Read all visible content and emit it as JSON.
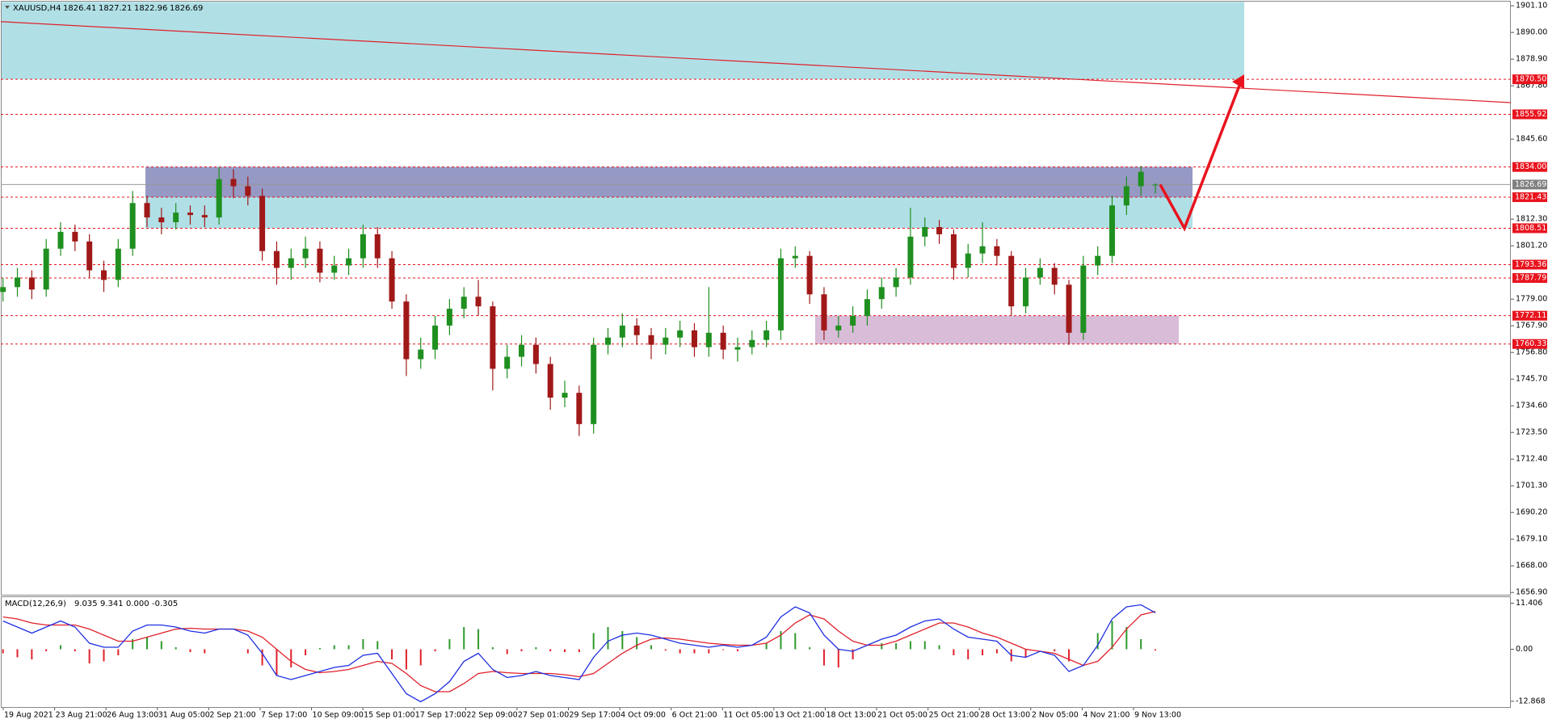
{
  "header": {
    "symbol": "XAUUSD,H4",
    "ohlc": [
      1826.41,
      1827.21,
      1822.96,
      1826.69
    ]
  },
  "chart_data": [
    {
      "type": "candlestick",
      "time_labels": [
        "19 Aug 2021",
        "23 Aug 21:00",
        "26 Aug 13:00",
        "31 Aug 05:00",
        "2 Sep 21:00",
        "7 Sep 17:00",
        "10 Sep 09:00",
        "15 Sep 01:00",
        "17 Sep 17:00",
        "22 Sep 09:00",
        "27 Sep 01:00",
        "29 Sep 17:00",
        "4 Oct 09:00",
        "6 Oct 21:00",
        "11 Oct 05:00",
        "13 Oct 21:00",
        "18 Oct 13:00",
        "21 Oct 05:00",
        "25 Oct 21:00",
        "28 Oct 13:00",
        "2 Nov 05:00",
        "4 Nov 21:00",
        "9 Nov 13:00"
      ],
      "open": [
        1782,
        1784,
        1788,
        1783,
        1800,
        1807,
        1803,
        1791,
        1787,
        1800,
        1819,
        1813,
        1811,
        1815,
        1814,
        1813,
        1829,
        1826,
        1822,
        1799,
        1792,
        1796,
        1800,
        1790,
        1793,
        1796,
        1806,
        1796,
        1778,
        1754,
        1758,
        1768,
        1775,
        1780,
        1776,
        1750,
        1755,
        1760,
        1752,
        1738,
        1740,
        1727,
        1760,
        1763,
        1768,
        1764,
        1760,
        1763,
        1766,
        1759,
        1765,
        1758,
        1759,
        1762,
        1766,
        1796,
        1797,
        1781,
        1766,
        1768,
        1772,
        1779,
        1784,
        1788,
        1805,
        1809,
        1806,
        1792,
        1798,
        1801,
        1797,
        1776,
        1788,
        1792,
        1785,
        1765,
        1793,
        1797,
        1818,
        1826,
        1826.41
      ],
      "high": [
        1788,
        1792,
        1791,
        1804,
        1811,
        1810,
        1806,
        1795,
        1804,
        1824,
        1822,
        1817,
        1819,
        1818,
        1818,
        1834,
        1833,
        1830,
        1825,
        1803,
        1800,
        1805,
        1803,
        1797,
        1800,
        1810,
        1809,
        1799,
        1781,
        1763,
        1772,
        1779,
        1784,
        1787,
        1778,
        1760,
        1764,
        1763,
        1755,
        1745,
        1743,
        1763,
        1767,
        1773,
        1771,
        1767,
        1767,
        1770,
        1769,
        1784,
        1768,
        1763,
        1766,
        1770,
        1800,
        1801,
        1799,
        1784,
        1772,
        1776,
        1783,
        1788,
        1792,
        1817,
        1813,
        1812,
        1808,
        1802,
        1811,
        1804,
        1799,
        1792,
        1796,
        1794,
        1787,
        1797,
        1801,
        1822,
        1830,
        1834.5,
        1827.21
      ],
      "low": [
        1778,
        1780,
        1779,
        1780,
        1797,
        1799,
        1788,
        1782,
        1784,
        1797,
        1809,
        1806,
        1808,
        1810,
        1809,
        1810,
        1821,
        1818,
        1795,
        1785,
        1787,
        1792,
        1786,
        1787,
        1789,
        1792,
        1792,
        1775,
        1747,
        1750,
        1754,
        1764,
        1771,
        1772,
        1741,
        1746,
        1751,
        1748,
        1733,
        1734,
        1722,
        1723,
        1756,
        1759,
        1760,
        1754,
        1756,
        1759,
        1755,
        1755,
        1754,
        1753,
        1756,
        1759,
        1762,
        1792,
        1777,
        1762,
        1763,
        1765,
        1768,
        1775,
        1780,
        1785,
        1801,
        1802,
        1787,
        1788,
        1794,
        1793,
        1772,
        1773,
        1785,
        1781,
        1760,
        1762,
        1789,
        1794,
        1814,
        1822,
        1822.96
      ],
      "close": [
        1784,
        1788,
        1783,
        1800,
        1807,
        1803,
        1791,
        1787,
        1800,
        1819,
        1813,
        1811,
        1815,
        1814,
        1813,
        1829,
        1826,
        1822,
        1799,
        1792,
        1796,
        1800,
        1790,
        1793,
        1796,
        1806,
        1796,
        1778,
        1754,
        1758,
        1768,
        1775,
        1780,
        1776,
        1750,
        1755,
        1760,
        1752,
        1738,
        1740,
        1727,
        1760,
        1763,
        1768,
        1764,
        1760,
        1763,
        1766,
        1759,
        1765,
        1758,
        1759,
        1762,
        1766,
        1796,
        1797,
        1781,
        1766,
        1768,
        1772,
        1779,
        1784,
        1788,
        1805,
        1809,
        1806,
        1792,
        1798,
        1801,
        1797,
        1776,
        1788,
        1792,
        1785,
        1765,
        1793,
        1797,
        1818,
        1826,
        1832,
        1826.69
      ],
      "up_color": "#1f8f1f",
      "down_color": "#a01818",
      "ylim": [
        1656.1,
        1902.7
      ],
      "yticks": [
        {
          "value": 1901.1,
          "label": "1901.10"
        },
        {
          "value": 1890,
          "label": "1890.00"
        },
        {
          "value": 1878.9,
          "label": "1878.90"
        },
        {
          "value": 1867.8,
          "label": "1867.80"
        },
        {
          "value": 1845.6,
          "label": "1845.60"
        },
        {
          "value": 1812.3,
          "label": "1812.30"
        },
        {
          "value": 1801.2,
          "label": "1801.20"
        },
        {
          "value": 1779,
          "label": "1779.00"
        },
        {
          "value": 1767.9,
          "label": "1767.90"
        },
        {
          "value": 1756.8,
          "label": "1756.80"
        },
        {
          "value": 1745.7,
          "label": "1745.70"
        },
        {
          "value": 1734.6,
          "label": "1734.60"
        },
        {
          "value": 1723.5,
          "label": "1723.50"
        },
        {
          "value": 1712.4,
          "label": "1712.40"
        },
        {
          "value": 1701.3,
          "label": "1701.30"
        },
        {
          "value": 1690.2,
          "label": "1690.20"
        },
        {
          "value": 1679.1,
          "label": "1679.10"
        },
        {
          "value": 1668,
          "label": "1668.00"
        },
        {
          "value": 1656.9,
          "label": "1656.90"
        }
      ],
      "levels": [
        {
          "value": 1870.5,
          "label": "1870.50"
        },
        {
          "value": 1855.92,
          "label": "1855.92"
        },
        {
          "value": 1834,
          "label": "1834.00"
        },
        {
          "value": 1821.43,
          "label": "1821.43"
        },
        {
          "value": 1808.51,
          "label": "1808.51"
        },
        {
          "value": 1793.36,
          "label": "1793.36"
        },
        {
          "value": 1787.79,
          "label": "1787.79"
        },
        {
          "value": 1772.11,
          "label": "1772.11"
        },
        {
          "value": 1760.33,
          "label": "1760.33"
        }
      ],
      "level_color": "#e8141e",
      "current_price": {
        "value": 1826.69,
        "label": "1826.69"
      },
      "zones": [
        {
          "low": 1870.5,
          "high": 1902.7,
          "color": "#b0e0e6"
        },
        {
          "low": 1808.51,
          "high": 1834,
          "color": "#b0e0e6"
        },
        {
          "low": 1821.43,
          "high": 1834,
          "color": "#9699c4"
        },
        {
          "low": 1760.33,
          "high": 1772.11,
          "color": "#d8bcd8"
        }
      ],
      "trend_line": {
        "start": 1894.5,
        "end": 1860.8,
        "color": "#e0202a"
      },
      "arrow": {
        "points": [
          1826.7,
          1808.5,
          1870.5
        ],
        "color": "#e8141e"
      }
    },
    {
      "type": "macd",
      "title": "MACD(12,26,9)",
      "header_values": [
        9.035,
        9.341,
        {
          "value": 0,
          "label": "0.000"
        },
        -0.305
      ],
      "macd": [
        7,
        5.5,
        4,
        5.5,
        7,
        5.5,
        1.5,
        0.5,
        0.5,
        4.5,
        6,
        6,
        5.5,
        4.5,
        4,
        5,
        5,
        3.5,
        -1,
        -6.5,
        -7.5,
        -6.5,
        -5.5,
        -4.5,
        -4,
        -1.5,
        -1,
        -6,
        -11,
        -13,
        -11,
        -8,
        -3,
        -1,
        -5,
        -7,
        -6.5,
        -5.5,
        -6.5,
        -7,
        -7.5,
        -2,
        2,
        3.5,
        4,
        3.5,
        2.5,
        1.5,
        1,
        0.5,
        1,
        0.5,
        1,
        3,
        8,
        10.5,
        9,
        3.5,
        0,
        -0.5,
        1,
        2.5,
        3.5,
        5.5,
        7,
        7.5,
        5,
        3,
        2.5,
        2,
        -1.5,
        -2,
        -0.5,
        -1.5,
        -5.5,
        -4,
        1,
        7.5,
        10.5,
        11,
        9.035
      ],
      "signal": [
        8,
        7.5,
        6.5,
        6,
        6,
        6,
        5,
        3.5,
        2,
        2,
        3,
        4,
        5,
        5.2,
        5,
        5,
        5,
        4.5,
        3,
        0,
        -3,
        -5,
        -5.8,
        -5.5,
        -5,
        -4,
        -3,
        -3.5,
        -6,
        -9,
        -10.5,
        -10.5,
        -8.5,
        -6,
        -5.5,
        -5.8,
        -6,
        -6,
        -6,
        -6.3,
        -6.8,
        -6,
        -3.5,
        -1,
        1,
        2.5,
        2.8,
        2.5,
        2,
        1.5,
        1.2,
        1,
        1,
        1.5,
        3.5,
        6.5,
        8.5,
        7.5,
        4.5,
        2,
        1,
        1,
        2,
        3.5,
        5,
        6.5,
        6.5,
        5.5,
        4,
        3,
        1.5,
        0,
        -0.5,
        -1,
        -2.5,
        -4,
        -3,
        0.5,
        5,
        8.5,
        9.341
      ],
      "histogram": [
        -1,
        -2,
        -2.5,
        -0.5,
        1,
        -0.5,
        -3.5,
        -3,
        -1.5,
        2.5,
        3,
        2,
        0.5,
        -0.7,
        -1,
        0,
        0,
        -1,
        -4,
        -6.5,
        -4.5,
        -1.5,
        0.3,
        1,
        1,
        2.5,
        2,
        -2.5,
        -5,
        -4,
        -0.5,
        2.5,
        5.5,
        5,
        0.5,
        -1.2,
        -0.5,
        0.5,
        -0.5,
        -0.7,
        -0.7,
        4,
        5.5,
        4.5,
        3,
        1,
        -0.3,
        -1,
        -1,
        -1,
        -0.2,
        -0.5,
        0,
        1.5,
        4.5,
        4,
        0.5,
        -4,
        -4.5,
        -2.5,
        0,
        1.5,
        1.5,
        2,
        2,
        1,
        -1.5,
        -2.5,
        -1.5,
        -1,
        -3,
        -2,
        0,
        -0.5,
        -3,
        0,
        4,
        7,
        5.5,
        2.5,
        -0.305
      ],
      "macd_color": "#1f2fe0",
      "signal_color": "#e0202a",
      "hist_up_color": "#2e9a2e",
      "hist_down_color": "#e0202a",
      "ylim": [
        -14.3,
        12.9
      ],
      "yticks": [
        11.406,
        {
          "value": 0,
          "label": "0.00"
        },
        -12.868
      ]
    }
  ]
}
